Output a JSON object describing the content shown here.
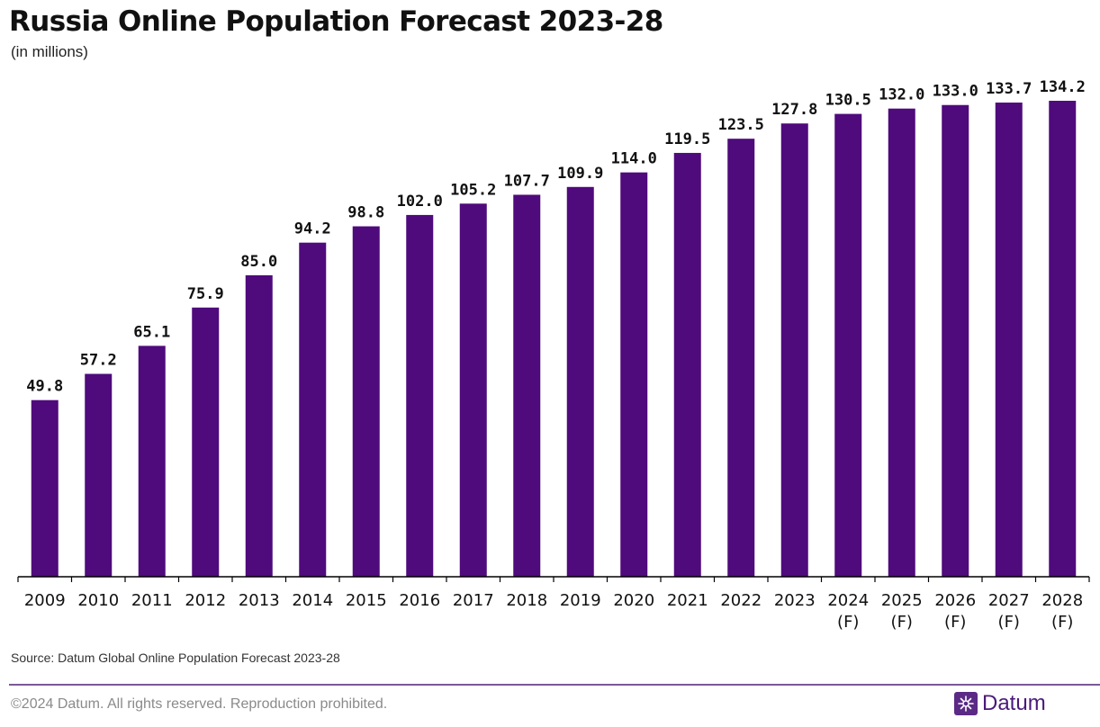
{
  "header": {
    "title": "Russia Online Population Forecast 2023-28",
    "subtitle": "(in millions)"
  },
  "footer": {
    "source": "Source: Datum Global Online Population Forecast 2023-28",
    "copyright": "©2024 Datum. All rights reserved. Reproduction prohibited.",
    "brand": "Datum"
  },
  "colors": {
    "bar": "#4f0a7c",
    "axis": "#000000",
    "footer_rule": "#7a5a96",
    "brand": "#5b2a86"
  },
  "chart_data": {
    "type": "bar",
    "title": "Russia Online Population Forecast 2023-28",
    "subtitle": "(in millions)",
    "categories": [
      "2009",
      "2010",
      "2011",
      "2012",
      "2013",
      "2014",
      "2015",
      "2016",
      "2017",
      "2018",
      "2019",
      "2020",
      "2021",
      "2022",
      "2023",
      "2024 (F)",
      "2025 (F)",
      "2026 (F)",
      "2027 (F)",
      "2028 (F)"
    ],
    "values": [
      49.8,
      57.2,
      65.1,
      75.9,
      85.0,
      94.2,
      98.8,
      102.0,
      105.2,
      107.7,
      109.9,
      114.0,
      119.5,
      123.5,
      127.8,
      130.5,
      132.0,
      133.0,
      133.7,
      134.2
    ],
    "value_labels": [
      "49.8",
      "57.2",
      "65.1",
      "75.9",
      "85.0",
      "94.2",
      "98.8",
      "102.0",
      "105.2",
      "107.7",
      "109.9",
      "114.0",
      "119.5",
      "123.5",
      "127.8",
      "130.5",
      "132.0",
      "133.0",
      "133.7",
      "134.2"
    ],
    "ylim": [
      0,
      134.2
    ],
    "xlabel": "",
    "ylabel": "",
    "grid": false,
    "legend": "none"
  }
}
